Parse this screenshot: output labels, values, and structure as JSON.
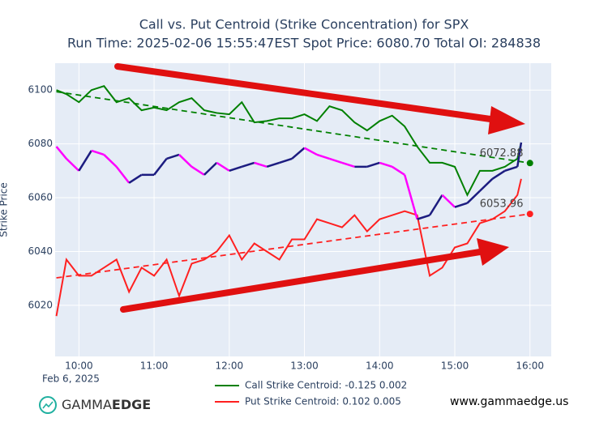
{
  "chart_data": {
    "type": "line",
    "title": "Call vs. Put Centroid (Strike Concentration) for SPX",
    "subtitle": "Run Time: 2025-02-06 15:55:47EST Spot Price: 6080.70 Total OI: 284838",
    "y_label": "Strike Price",
    "x_date_label": "Feb 6, 2025",
    "x": [
      "09:42",
      "09:50",
      "10:00",
      "10:10",
      "10:20",
      "10:30",
      "10:40",
      "10:50",
      "11:00",
      "11:10",
      "11:20",
      "11:30",
      "11:40",
      "11:50",
      "12:00",
      "12:10",
      "12:20",
      "12:30",
      "12:40",
      "12:50",
      "13:00",
      "13:10",
      "13:20",
      "13:30",
      "13:40",
      "13:50",
      "14:00",
      "14:10",
      "14:20",
      "14:30",
      "14:40",
      "14:50",
      "15:00",
      "15:10",
      "15:20",
      "15:30",
      "15:40",
      "15:50",
      "15:53"
    ],
    "xlim": [
      "09:41",
      "16:17"
    ],
    "xticks": [
      "10:00",
      "11:00",
      "12:00",
      "13:00",
      "14:00",
      "15:00",
      "16:00"
    ],
    "ylim": [
      6001,
      6110
    ],
    "yticks": [
      6020,
      6040,
      6060,
      6080,
      6100
    ],
    "grid": true,
    "series": [
      {
        "name": "Call Strike Centroid: -0.125 0.002",
        "color": "#008000",
        "values": [
          6100,
          6098.5,
          6095.5,
          6100,
          6101.5,
          6095.5,
          6097,
          6092.5,
          6093.5,
          6092.5,
          6095.5,
          6097,
          6092.5,
          6091.5,
          6091,
          6095.5,
          6088,
          6088.5,
          6089.5,
          6089.5,
          6091,
          6088.5,
          6094,
          6092.5,
          6088,
          6085,
          6088.5,
          6090.5,
          6086.5,
          6079,
          6073,
          6073,
          6071.5,
          6061,
          6070,
          6070,
          6071.5,
          6074.5,
          6080.5
        ],
        "trend": {
          "x": [
            "09:42",
            "16:00"
          ],
          "values": [
            6099.4,
            6072.88
          ],
          "value_labels": [
            null,
            "6072.88"
          ]
        }
      },
      {
        "name": "Put Strike Centroid: 0.102 0.005",
        "color": "#ff2020",
        "values": [
          6016,
          6037,
          6031,
          6031,
          6034,
          6037,
          6025,
          6034,
          6031,
          6037,
          6023.5,
          6035.5,
          6037,
          6040,
          6046,
          6037,
          6043,
          6040,
          6037,
          6044.5,
          6044.5,
          6052,
          6050.5,
          6049,
          6053.5,
          6047.5,
          6052,
          6053.5,
          6055,
          6053.5,
          6031,
          6034,
          6041.5,
          6043,
          6050.5,
          6052,
          6055,
          6061,
          6067
        ],
        "trend": {
          "x": [
            "09:42",
            "16:00"
          ],
          "values": [
            6030.2,
            6053.96
          ],
          "value_labels": [
            null,
            "6053.96"
          ]
        }
      }
    ],
    "price": {
      "up_color": "#1c1c80",
      "down_color": "#ff00ff",
      "values": [
        6079,
        6074.5,
        6070,
        6077.5,
        6076,
        6071.5,
        6065.5,
        6068.5,
        6068.5,
        6074.5,
        6076,
        6071.5,
        6068.5,
        6073,
        6070,
        6071.5,
        6073,
        6071.5,
        6073,
        6074.5,
        6078.5,
        6076,
        6074.5,
        6073,
        6071.5,
        6071.5,
        6073,
        6071.5,
        6068.5,
        6052,
        6053.5,
        6061,
        6056.5,
        6058,
        6062.5,
        6067,
        6070,
        6071.5,
        6080.5
      ]
    },
    "logo": {
      "light": "GAMMA",
      "bold": "EDGE"
    },
    "website": "www.gammaedge.us"
  }
}
